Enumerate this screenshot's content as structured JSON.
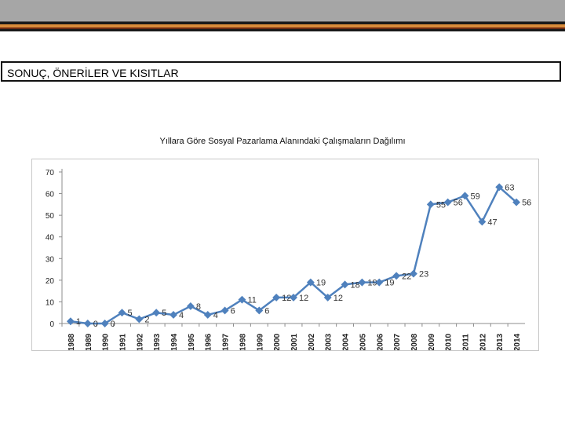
{
  "slide": {
    "heading": "SONUÇ, ÖNERİLER VE KISITLAR"
  },
  "colors": {
    "series": "#4f81bd",
    "axis": "#8c8c8c",
    "top_band": "#a6a6a6",
    "stripe_orange": "#d98c3a"
  },
  "chart_data": {
    "type": "line",
    "title": "Yıllara Göre Sosyal Pazarlama Alanındaki Çalışmaların Dağılımı",
    "xlabel": "",
    "ylabel": "",
    "ylim": [
      0,
      70
    ],
    "yticks": [
      0,
      10,
      20,
      30,
      40,
      50,
      60,
      70
    ],
    "grid": false,
    "legend": "none",
    "x": [
      "1988",
      "1989",
      "1990",
      "1991",
      "1992",
      "1993",
      "1994",
      "1995",
      "1996",
      "1997",
      "1998",
      "1999",
      "2000",
      "2001",
      "2002",
      "2003",
      "2004",
      "2005",
      "2006",
      "2007",
      "2008",
      "2009",
      "2010",
      "2011",
      "2012",
      "2013",
      "2014"
    ],
    "series": [
      {
        "values": [
          1,
          0,
          0,
          5,
          2,
          5,
          4,
          8,
          4,
          6,
          11,
          6,
          12,
          12,
          19,
          12,
          18,
          19,
          19,
          22,
          23,
          55,
          56,
          59,
          47,
          63,
          56
        ],
        "labels": [
          "1",
          "0",
          "0",
          "5",
          "2",
          "5",
          "4",
          "8",
          "4",
          "6",
          "11",
          "6",
          "12",
          "12",
          "19",
          "12",
          "18",
          "19",
          "19",
          "22",
          "23",
          "55",
          "56",
          "59",
          "47",
          "63",
          "56"
        ]
      }
    ]
  }
}
